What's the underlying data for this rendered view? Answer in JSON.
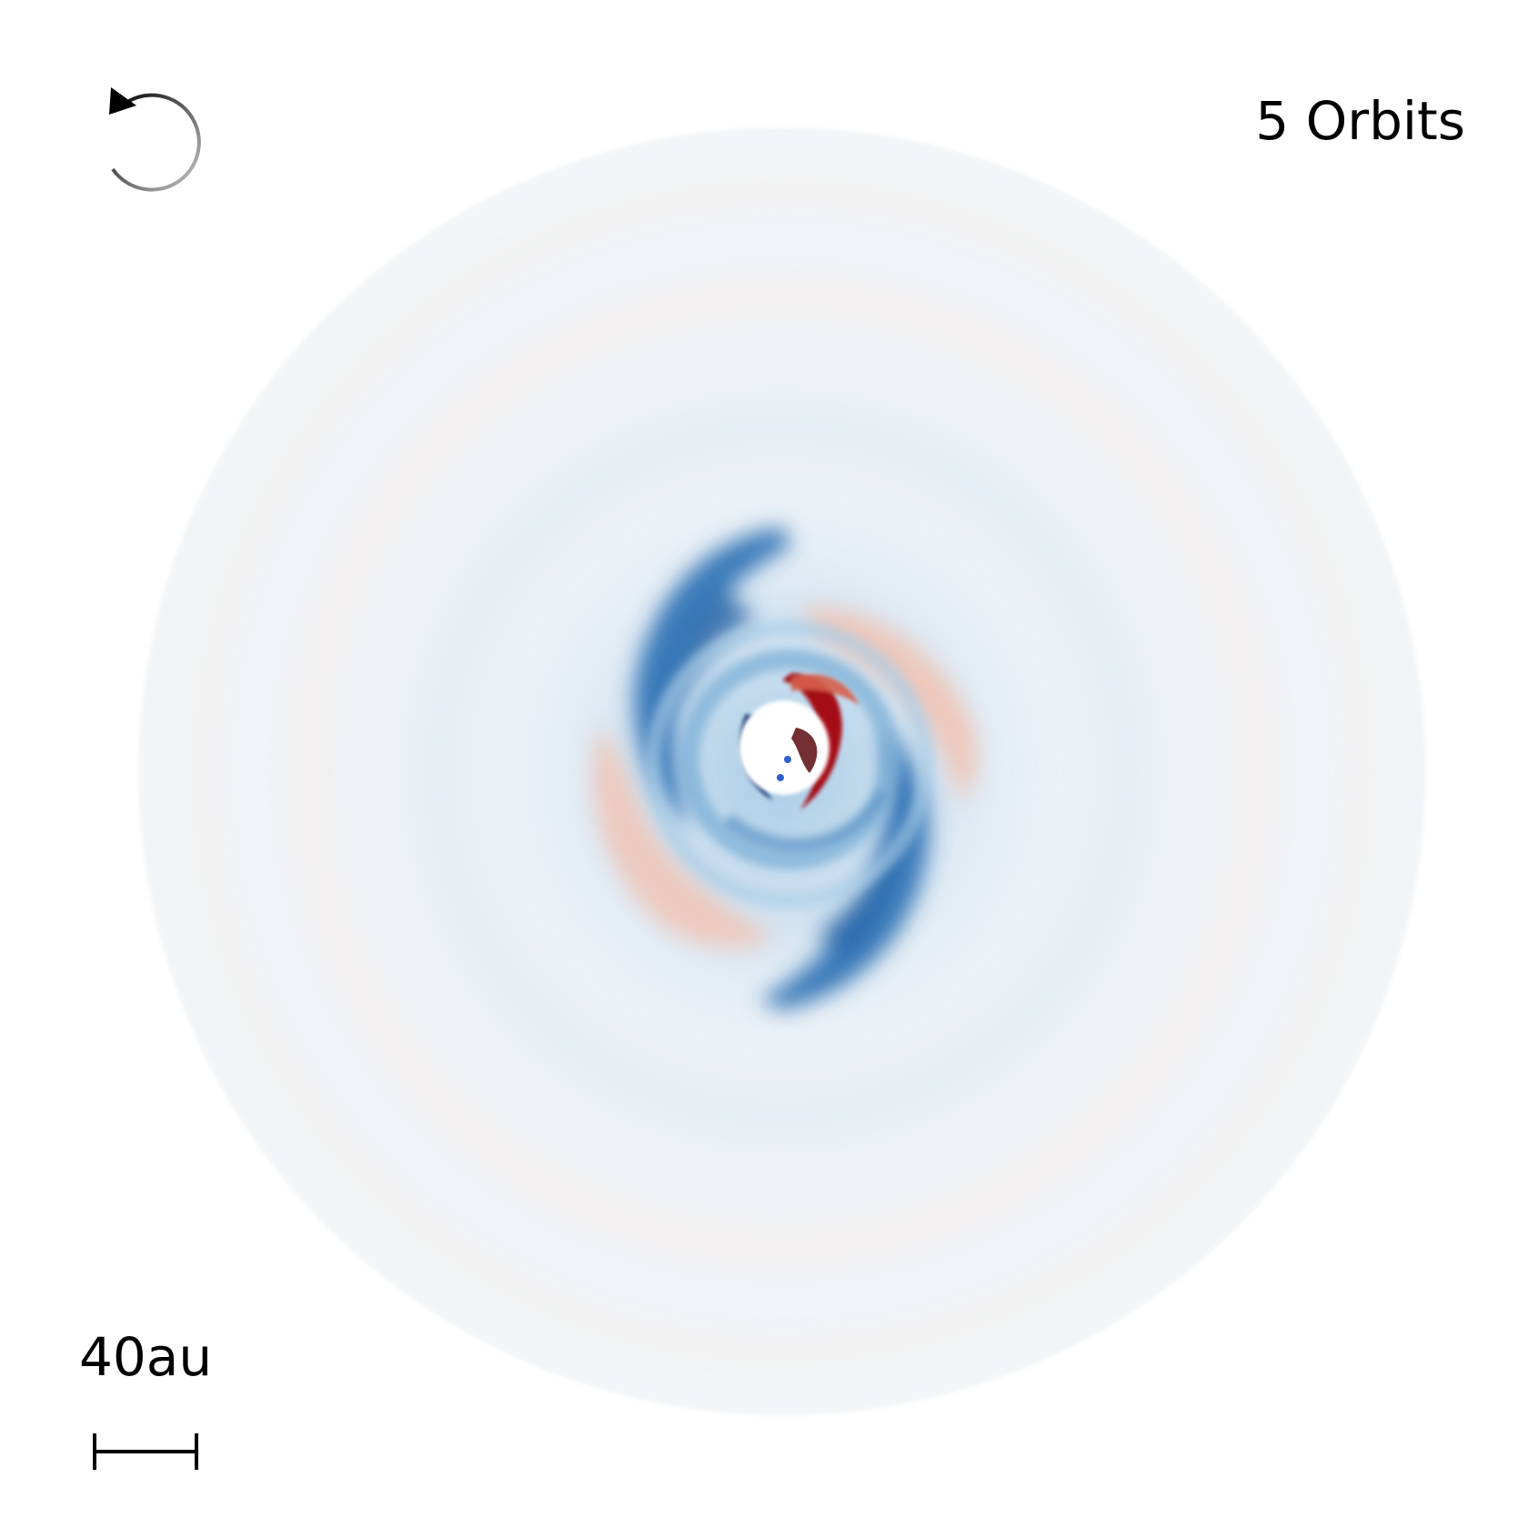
{
  "overlay": {
    "orbit_count": "5 Orbits",
    "scale_bar_label": "40au"
  },
  "icons": {
    "rotation_direction": "counterclockwise-arrow-icon"
  },
  "colors": {
    "background": "#ffffff",
    "disk_base": "#eef3f7",
    "positive_residual": "#b2182b",
    "negative_residual": "#2166ac",
    "center_hole": "#ffffff",
    "text": "#000000"
  }
}
